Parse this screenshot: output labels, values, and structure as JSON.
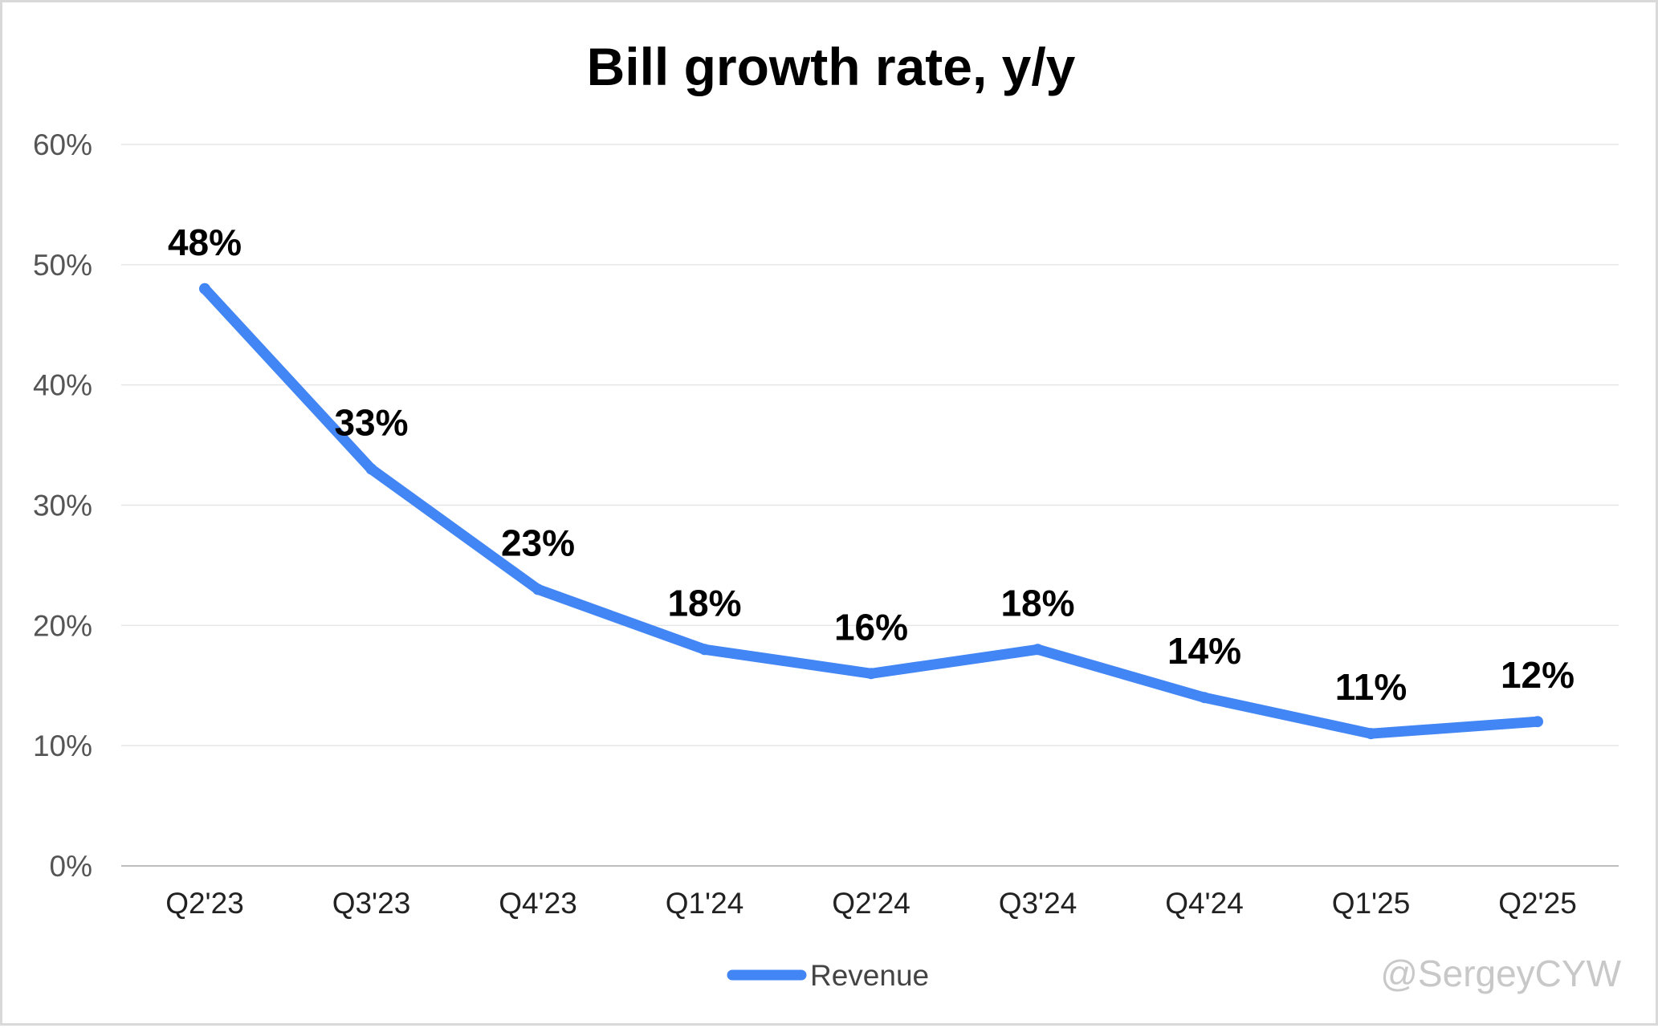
{
  "chart_data": {
    "type": "line",
    "title": "Bill growth rate, y/y",
    "categories": [
      "Q2'23",
      "Q3'23",
      "Q4'23",
      "Q1'24",
      "Q2'24",
      "Q3'24",
      "Q4'24",
      "Q1'25",
      "Q2'25"
    ],
    "series": [
      {
        "name": "Revenue",
        "color": "#4285f4",
        "values": [
          48,
          33,
          23,
          18,
          16,
          18,
          14,
          11,
          12
        ],
        "data_labels": [
          "48%",
          "33%",
          "23%",
          "18%",
          "16%",
          "18%",
          "14%",
          "11%",
          "12%"
        ]
      }
    ],
    "ylim": [
      0,
      60
    ],
    "yticks": [
      0,
      10,
      20,
      30,
      40,
      50,
      60
    ],
    "ytick_labels": [
      "0%",
      "10%",
      "20%",
      "30%",
      "40%",
      "50%",
      "60%"
    ],
    "xlabel": "",
    "ylabel": "",
    "grid": true,
    "legend_position": "bottom-center"
  },
  "watermark": "@SergeyCYW",
  "colors": {
    "line": "#4285f4",
    "grid": "#e6e6e6",
    "axis": "#bdbdbd",
    "border": "#d9d9d9"
  }
}
